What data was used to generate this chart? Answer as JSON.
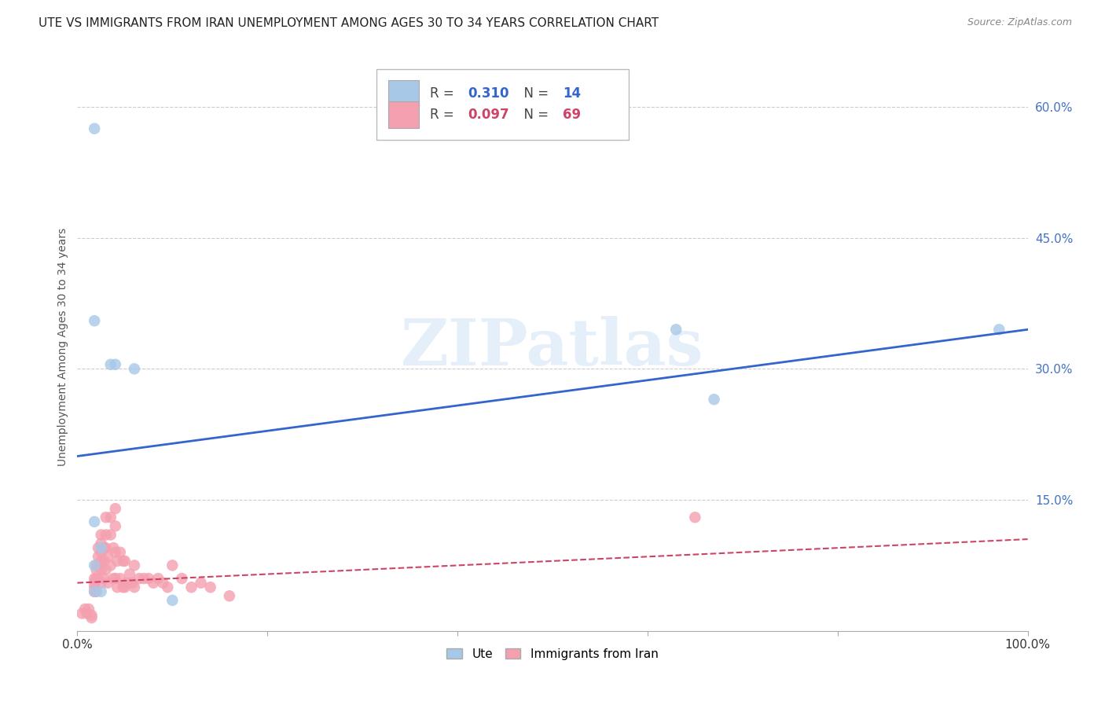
{
  "title": "UTE VS IMMIGRANTS FROM IRAN UNEMPLOYMENT AMONG AGES 30 TO 34 YEARS CORRELATION CHART",
  "source": "Source: ZipAtlas.com",
  "ylabel": "Unemployment Among Ages 30 to 34 years",
  "background_color": "#ffffff",
  "grid_color": "#cccccc",
  "ute_color": "#a8c8e8",
  "iran_color": "#f4a0b0",
  "ute_line_color": "#3366cc",
  "iran_line_color": "#cc4466",
  "R_ute": 0.31,
  "N_ute": 14,
  "R_iran": 0.097,
  "N_iran": 69,
  "ute_points_x": [
    0.018,
    0.018,
    0.035,
    0.04,
    0.06,
    0.018,
    0.025,
    0.018,
    0.018,
    0.67,
    0.025,
    0.1,
    0.63,
    0.97
  ],
  "ute_points_y": [
    0.575,
    0.355,
    0.305,
    0.305,
    0.3,
    0.125,
    0.095,
    0.075,
    0.045,
    0.265,
    0.045,
    0.035,
    0.345,
    0.345
  ],
  "iran_points_x": [
    0.005,
    0.008,
    0.01,
    0.012,
    0.015,
    0.015,
    0.018,
    0.018,
    0.018,
    0.018,
    0.02,
    0.02,
    0.02,
    0.02,
    0.022,
    0.022,
    0.022,
    0.022,
    0.025,
    0.025,
    0.025,
    0.025,
    0.025,
    0.025,
    0.028,
    0.028,
    0.028,
    0.03,
    0.03,
    0.03,
    0.03,
    0.032,
    0.032,
    0.035,
    0.035,
    0.035,
    0.038,
    0.038,
    0.04,
    0.04,
    0.04,
    0.04,
    0.042,
    0.042,
    0.045,
    0.045,
    0.048,
    0.048,
    0.05,
    0.05,
    0.052,
    0.055,
    0.058,
    0.06,
    0.06,
    0.065,
    0.07,
    0.075,
    0.08,
    0.085,
    0.09,
    0.095,
    0.1,
    0.11,
    0.12,
    0.13,
    0.14,
    0.16,
    0.65
  ],
  "iran_points_y": [
    0.02,
    0.025,
    0.02,
    0.025,
    0.018,
    0.015,
    0.06,
    0.055,
    0.05,
    0.045,
    0.075,
    0.07,
    0.06,
    0.045,
    0.095,
    0.085,
    0.075,
    0.06,
    0.11,
    0.1,
    0.09,
    0.08,
    0.07,
    0.055,
    0.095,
    0.08,
    0.06,
    0.13,
    0.11,
    0.095,
    0.07,
    0.085,
    0.055,
    0.13,
    0.11,
    0.075,
    0.095,
    0.06,
    0.14,
    0.12,
    0.09,
    0.06,
    0.08,
    0.05,
    0.09,
    0.06,
    0.08,
    0.05,
    0.08,
    0.05,
    0.055,
    0.065,
    0.055,
    0.075,
    0.05,
    0.06,
    0.06,
    0.06,
    0.055,
    0.06,
    0.055,
    0.05,
    0.075,
    0.06,
    0.05,
    0.055,
    0.05,
    0.04,
    0.13
  ],
  "xlim": [
    0.0,
    1.0
  ],
  "ylim": [
    0.0,
    0.65
  ],
  "xticks": [
    0.0,
    0.2,
    0.4,
    0.6,
    0.8,
    1.0
  ],
  "xtick_labels_show": [
    "0.0%",
    "",
    "",
    "",
    "",
    "100.0%"
  ],
  "yticks_right": [
    0.15,
    0.3,
    0.45,
    0.6
  ],
  "ytick_labels_right": [
    "15.0%",
    "30.0%",
    "45.0%",
    "60.0%"
  ],
  "ute_line_x": [
    0.0,
    1.0
  ],
  "ute_line_y": [
    0.2,
    0.345
  ],
  "iran_line_x": [
    0.0,
    1.0
  ],
  "iran_line_y": [
    0.055,
    0.105
  ],
  "watermark": "ZIPatlas",
  "title_fontsize": 11,
  "axis_label_fontsize": 10,
  "tick_fontsize": 11,
  "right_tick_color": "#4472c4"
}
